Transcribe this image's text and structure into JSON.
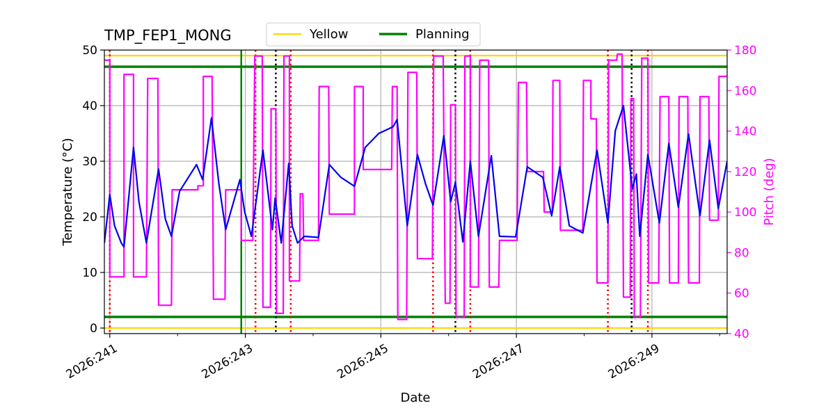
{
  "chart_data": {
    "type": "line",
    "title": "TMP_FEP1_MONG",
    "xlabel": "Date",
    "ylabel": "Temperature (°C)",
    "y2label": "Pitch (deg)",
    "xlim": [
      240.92,
      250.11
    ],
    "ylim": [
      -1,
      50
    ],
    "y2lim": [
      40,
      180
    ],
    "xticks": [
      {
        "value": 241,
        "label": "2026:241"
      },
      {
        "value": 243,
        "label": "2026:243"
      },
      {
        "value": 245,
        "label": "2026:245"
      },
      {
        "value": 247,
        "label": "2026:247"
      },
      {
        "value": 249,
        "label": "2026:249"
      }
    ],
    "xminorticks": [
      242,
      244,
      246,
      248,
      250
    ],
    "yticks": [
      0,
      10,
      20,
      30,
      40,
      50
    ],
    "y2ticks": [
      40,
      60,
      80,
      100,
      120,
      140,
      160,
      180
    ],
    "y2color": "#ff00ff",
    "grid": true,
    "legend": "upper center",
    "limits": [
      {
        "name": "Yellow",
        "color": "#ffd700",
        "values": [
          0,
          49
        ]
      },
      {
        "name": "Planning",
        "color": "#008000",
        "values": [
          2,
          47
        ]
      }
    ],
    "vlines": [
      {
        "x": 242.94,
        "color": "#008000",
        "style": "solid"
      },
      {
        "x": 241.0,
        "color": "#ff0000",
        "style": "dotted"
      },
      {
        "x": 243.15,
        "color": "#ff0000",
        "style": "dotted"
      },
      {
        "x": 243.67,
        "color": "#ff0000",
        "style": "dotted"
      },
      {
        "x": 245.77,
        "color": "#ff0000",
        "style": "dotted"
      },
      {
        "x": 246.32,
        "color": "#ff0000",
        "style": "dotted"
      },
      {
        "x": 248.35,
        "color": "#ff0000",
        "style": "dotted"
      },
      {
        "x": 248.94,
        "color": "#ff0000",
        "style": "dotted"
      },
      {
        "x": 243.45,
        "color": "#000000",
        "style": "dotted"
      },
      {
        "x": 246.1,
        "color": "#000000",
        "style": "dotted"
      },
      {
        "x": 248.7,
        "color": "#000000",
        "style": "dotted"
      }
    ],
    "series": [
      {
        "color": "#ff00ff",
        "axis": "y2",
        "x": [
          240.92,
          241.0,
          241.0,
          241.21,
          241.21,
          241.35,
          241.35,
          241.54,
          241.56,
          241.71,
          241.72,
          241.91,
          241.92,
          242.3,
          242.3,
          242.38,
          242.38,
          242.51,
          242.53,
          242.7,
          242.71,
          242.94,
          242.94,
          243.11,
          243.14,
          243.25,
          243.26,
          243.37,
          243.38,
          243.45,
          243.46,
          243.56,
          243.57,
          243.65,
          243.65,
          243.8,
          243.81,
          243.85,
          243.86,
          244.08,
          244.09,
          244.23,
          244.24,
          244.61,
          244.61,
          244.74,
          244.74,
          245.16,
          245.17,
          245.24,
          245.25,
          245.38,
          245.4,
          245.53,
          245.54,
          245.76,
          245.78,
          245.92,
          245.95,
          246.02,
          246.03,
          246.1,
          246.11,
          246.23,
          246.24,
          246.32,
          246.32,
          246.44,
          246.46,
          246.59,
          246.6,
          246.74,
          246.75,
          247.01,
          247.03,
          247.15,
          247.16,
          247.4,
          247.41,
          247.53,
          247.54,
          247.64,
          247.65,
          247.98,
          247.99,
          248.1,
          248.1,
          248.18,
          248.19,
          248.35,
          248.36,
          248.48,
          248.49,
          248.56,
          248.58,
          248.68,
          248.69,
          248.73,
          248.74,
          248.83,
          248.85,
          248.94,
          248.95,
          249.1,
          249.12,
          249.25,
          249.26,
          249.39,
          249.4,
          249.53,
          249.54,
          249.7,
          249.71,
          249.84,
          249.85,
          249.98,
          249.99,
          250.11
        ],
        "values": [
          175,
          175,
          68,
          68,
          168,
          168,
          68,
          68,
          166,
          166,
          54,
          54,
          111,
          111,
          113,
          113,
          167,
          167,
          57,
          57,
          111,
          111,
          86,
          86,
          177,
          177,
          53,
          53,
          151,
          151,
          50,
          50,
          177,
          177,
          66,
          66,
          109,
          109,
          86,
          86,
          162,
          162,
          99,
          99,
          162,
          162,
          121,
          121,
          162,
          162,
          47,
          47,
          169,
          169,
          77,
          77,
          177,
          177,
          55,
          55,
          153,
          153,
          48,
          48,
          177,
          177,
          63,
          63,
          175,
          175,
          63,
          63,
          86,
          86,
          164,
          164,
          120,
          120,
          100,
          100,
          165,
          165,
          91,
          91,
          165,
          165,
          146,
          146,
          65,
          65,
          175,
          175,
          178,
          178,
          58,
          58,
          156,
          156,
          48,
          48,
          176,
          176,
          65,
          65,
          157,
          157,
          65,
          65,
          157,
          157,
          65,
          65,
          157,
          157,
          96,
          96,
          167,
          167
        ]
      },
      {
        "color": "#0000ee",
        "axis": "y",
        "x": [
          240.92,
          241.0,
          241.07,
          241.17,
          241.21,
          241.35,
          241.43,
          241.54,
          241.72,
          241.82,
          241.91,
          242.03,
          242.28,
          242.37,
          242.5,
          242.61,
          242.71,
          242.92,
          242.99,
          243.09,
          243.26,
          243.4,
          243.44,
          243.53,
          243.64,
          243.69,
          243.77,
          243.87,
          244.08,
          244.24,
          244.41,
          244.61,
          244.77,
          244.97,
          245.18,
          245.24,
          245.39,
          245.54,
          245.66,
          245.77,
          245.93,
          246.03,
          246.1,
          246.21,
          246.32,
          246.44,
          246.63,
          246.75,
          246.99,
          247.16,
          247.39,
          247.52,
          247.64,
          247.78,
          247.98,
          248.19,
          248.35,
          248.46,
          248.58,
          248.71,
          248.77,
          248.82,
          248.94,
          249.11,
          249.25,
          249.39,
          249.54,
          249.71,
          249.85,
          249.98,
          250.11
        ],
        "values": [
          15.3,
          24,
          18.4,
          15.3,
          14.6,
          32.5,
          22.7,
          15.3,
          28.6,
          19.6,
          16.5,
          24.6,
          29.4,
          26.7,
          37.8,
          25.9,
          17.7,
          26.7,
          20.9,
          16.5,
          32,
          17.7,
          23.4,
          15.3,
          29.6,
          18.4,
          15.3,
          16.5,
          16.3,
          29.4,
          27.1,
          25.5,
          32.5,
          35,
          36.2,
          37.5,
          18.4,
          31.2,
          25.9,
          22.1,
          34.6,
          22.7,
          26.2,
          15.5,
          30,
          16.5,
          31,
          16.5,
          16.4,
          29,
          27.1,
          20.2,
          29,
          18.4,
          17.1,
          32,
          18.9,
          35.5,
          40,
          25,
          27.7,
          16.5,
          31.2,
          18.9,
          33.2,
          21.7,
          34.9,
          20.2,
          33.8,
          21.5,
          30
        ]
      }
    ]
  }
}
